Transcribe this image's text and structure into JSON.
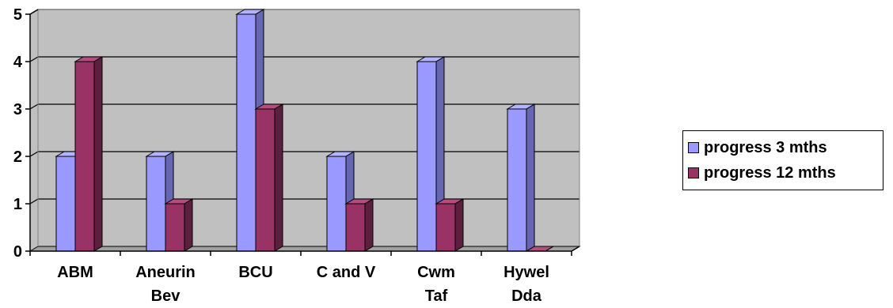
{
  "chart_data": {
    "type": "bar",
    "categories": [
      [
        "ABM"
      ],
      [
        "Aneurin",
        "Bev"
      ],
      [
        "BCU"
      ],
      [
        "C and V"
      ],
      [
        "Cwm",
        "Taf"
      ],
      [
        "Hywel",
        "Dda"
      ]
    ],
    "series": [
      {
        "name": "progress 3 mths",
        "values": [
          2,
          2,
          5,
          2,
          4,
          3
        ],
        "color": "#9999ff",
        "side": "#6666b3",
        "top": "#b3b3ff"
      },
      {
        "name": "progress 12 mths",
        "values": [
          4,
          1,
          3,
          1,
          1,
          0
        ],
        "color": "#993366",
        "side": "#5c1f3d",
        "top": "#b34d80"
      }
    ],
    "ylim": [
      0,
      5
    ],
    "yticks": [
      "0",
      "1",
      "2",
      "3",
      "4",
      "5"
    ],
    "grid": true,
    "plot_background": "#c0c0c0",
    "legend_position": "right",
    "title": "",
    "xlabel": "",
    "ylabel": ""
  }
}
